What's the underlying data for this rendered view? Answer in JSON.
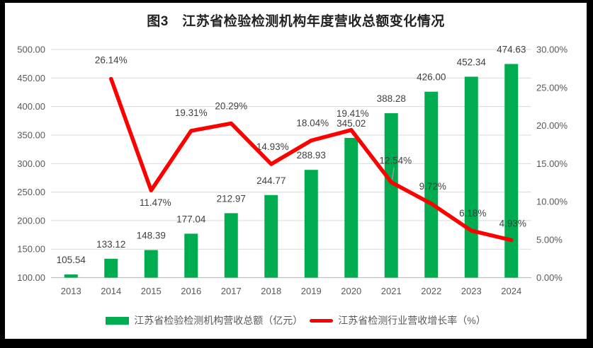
{
  "title": "图3　江苏省检验检测机构年度营收总额变化情况",
  "chart_data": {
    "type": "combo-bar-line",
    "categories": [
      "2013",
      "2014",
      "2015",
      "2016",
      "2017",
      "2018",
      "2019",
      "2020",
      "2021",
      "2022",
      "2023",
      "2024"
    ],
    "series": [
      {
        "name": "江苏省检验检测机构营收总额（亿元）",
        "type": "bar",
        "axis": "left",
        "color": "#00AC4F",
        "values": [
          105.54,
          133.12,
          148.39,
          177.04,
          212.97,
          244.77,
          288.93,
          345.02,
          388.28,
          426.0,
          452.34,
          474.63
        ],
        "point_labels": [
          "105.54",
          "133.12",
          "148.39",
          "177.04",
          "212.97",
          "244.77",
          "288.93",
          "345.02",
          "388.28",
          "426.00",
          "452.34",
          "474.63"
        ]
      },
      {
        "name": "江苏省检测行业营收增长率（%）",
        "type": "line",
        "axis": "right",
        "color": "#FF0000",
        "values": [
          null,
          26.14,
          11.47,
          19.31,
          20.29,
          14.93,
          18.04,
          19.41,
          12.54,
          9.72,
          6.18,
          4.93
        ],
        "point_labels": [
          "",
          "26.14%",
          "11.47%",
          "19.31%",
          "20.29%",
          "14.93%",
          "18.04%",
          "19.41%",
          "12.54%",
          "9.72%",
          "6.18%",
          "4.93%"
        ]
      }
    ],
    "left_axis": {
      "min": 100,
      "max": 500,
      "step": 50,
      "tick_labels": [
        "100.00",
        "150.00",
        "200.00",
        "250.00",
        "300.00",
        "350.00",
        "400.00",
        "450.00",
        "500.00"
      ]
    },
    "right_axis": {
      "min": 0,
      "max": 30,
      "step": 5,
      "tick_labels": [
        "0.00%",
        "5.00%",
        "10.00%",
        "15.00%",
        "20.00%",
        "25.00%",
        "30.00%"
      ]
    },
    "grid": true,
    "legend_position": "bottom"
  },
  "legend": {
    "items": [
      {
        "label": "江苏省检验检测机构营收总额（亿元）",
        "swatch": "bar"
      },
      {
        "label": "江苏省检测行业营收增长率（%）",
        "swatch": "line"
      }
    ]
  }
}
